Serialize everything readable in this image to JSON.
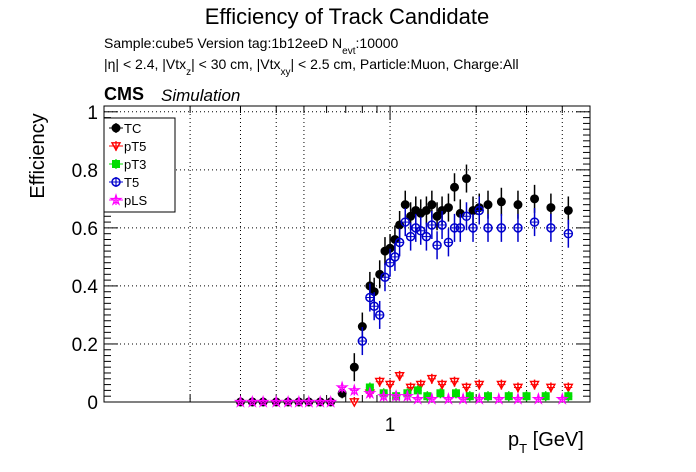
{
  "header": {
    "title": "Efficiency of Track Candidate",
    "line1_prefix": "Sample:cube5   Version tag:1b12eeD  N",
    "line1_sub": "evt",
    "line1_suffix": ":10000",
    "line2_a": "|η| < 2.4, |Vtx",
    "line2_sub_z": "z",
    "line2_b": "| < 30 cm, |Vtx",
    "line2_sub_xy": "xy",
    "line2_c": "| < 2.5 cm, Particle:Muon, Charge:All"
  },
  "labels": {
    "cms": "CMS",
    "simulation": "Simulation",
    "ylabel": "Efficiency",
    "xlabel_main": "p",
    "xlabel_sub": "T",
    "xlabel_unit": " [GeV]"
  },
  "chart_data": {
    "type": "scatter",
    "title": "Efficiency of Track Candidate",
    "xlabel": "p_T [GeV]",
    "ylabel": "Efficiency",
    "x_scale": "log",
    "xlim": [
      0.1,
      5
    ],
    "ylim": [
      0,
      1.02
    ],
    "x_ticks": [
      "1"
    ],
    "y_ticks": [
      "0",
      "0.2",
      "0.4",
      "0.6",
      "0.8",
      "1"
    ],
    "grid": true,
    "legend_position": "top-left",
    "series": [
      {
        "name": "TC",
        "color": "#000000",
        "marker": "filled-circle",
        "x": [
          0.3,
          0.33,
          0.36,
          0.4,
          0.44,
          0.48,
          0.52,
          0.57,
          0.62,
          0.68,
          0.75,
          0.8,
          0.85,
          0.88,
          0.92,
          0.96,
          1.0,
          1.04,
          1.08,
          1.13,
          1.18,
          1.23,
          1.28,
          1.34,
          1.4,
          1.46,
          1.52,
          1.6,
          1.68,
          1.76,
          1.85,
          1.95,
          2.05,
          2.2,
          2.45,
          2.8,
          3.2,
          3.65,
          4.2
        ],
        "y": [
          0.0,
          0.0,
          0.0,
          0.0,
          0.0,
          0.0,
          0.0,
          0.0,
          0.0,
          0.03,
          0.12,
          0.26,
          0.4,
          0.38,
          0.44,
          0.52,
          0.53,
          0.56,
          0.61,
          0.68,
          0.64,
          0.66,
          0.65,
          0.66,
          0.68,
          0.64,
          0.66,
          0.67,
          0.74,
          0.65,
          0.77,
          0.66,
          0.67,
          0.68,
          0.69,
          0.68,
          0.7,
          0.67,
          0.66
        ]
      },
      {
        "name": "pT5",
        "color": "#ff0000",
        "marker": "open-triangle-down",
        "x": [
          0.75,
          0.85,
          0.92,
          1.0,
          1.08,
          1.18,
          1.28,
          1.4,
          1.52,
          1.68,
          1.85,
          2.05,
          2.45,
          2.8,
          3.2,
          3.65,
          4.2
        ],
        "y": [
          0.0,
          0.03,
          0.07,
          0.06,
          0.09,
          0.05,
          0.06,
          0.08,
          0.06,
          0.07,
          0.05,
          0.06,
          0.06,
          0.05,
          0.06,
          0.05,
          0.05
        ]
      },
      {
        "name": "pT3",
        "color": "#00dd00",
        "marker": "filled-square",
        "x": [
          0.85,
          0.95,
          1.05,
          1.15,
          1.25,
          1.35,
          1.5,
          1.7,
          1.9,
          2.2,
          2.6,
          3.0,
          3.5,
          4.2
        ],
        "y": [
          0.05,
          0.03,
          0.02,
          0.03,
          0.04,
          0.02,
          0.03,
          0.03,
          0.02,
          0.02,
          0.02,
          0.02,
          0.02,
          0.02
        ]
      },
      {
        "name": "T5",
        "color": "#0000cc",
        "marker": "open-circle",
        "x": [
          0.8,
          0.85,
          0.88,
          0.92,
          0.96,
          1.0,
          1.04,
          1.08,
          1.13,
          1.18,
          1.23,
          1.28,
          1.34,
          1.4,
          1.46,
          1.52,
          1.6,
          1.68,
          1.76,
          1.85,
          1.95,
          2.05,
          2.2,
          2.45,
          2.8,
          3.2,
          3.65,
          4.2
        ],
        "y": [
          0.21,
          0.36,
          0.33,
          0.3,
          0.43,
          0.48,
          0.5,
          0.55,
          0.62,
          0.57,
          0.6,
          0.59,
          0.57,
          0.61,
          0.54,
          0.61,
          0.55,
          0.6,
          0.6,
          0.64,
          0.6,
          0.66,
          0.6,
          0.6,
          0.6,
          0.62,
          0.6,
          0.58
        ]
      },
      {
        "name": "pLS",
        "color": "#ff00ff",
        "marker": "open-star",
        "x": [
          0.3,
          0.33,
          0.36,
          0.4,
          0.44,
          0.48,
          0.52,
          0.57,
          0.62,
          0.68,
          0.75,
          0.85,
          0.95,
          1.05,
          1.15,
          1.25,
          1.4,
          1.6,
          1.8,
          2.05,
          2.4,
          2.8,
          3.3,
          4.0
        ],
        "y": [
          0.0,
          0.0,
          0.0,
          0.0,
          0.0,
          0.0,
          0.0,
          0.0,
          0.0,
          0.05,
          0.04,
          0.03,
          0.02,
          0.02,
          0.02,
          0.01,
          0.01,
          0.01,
          0.01,
          0.01,
          0.01,
          0.01,
          0.01,
          0.01
        ]
      }
    ]
  }
}
